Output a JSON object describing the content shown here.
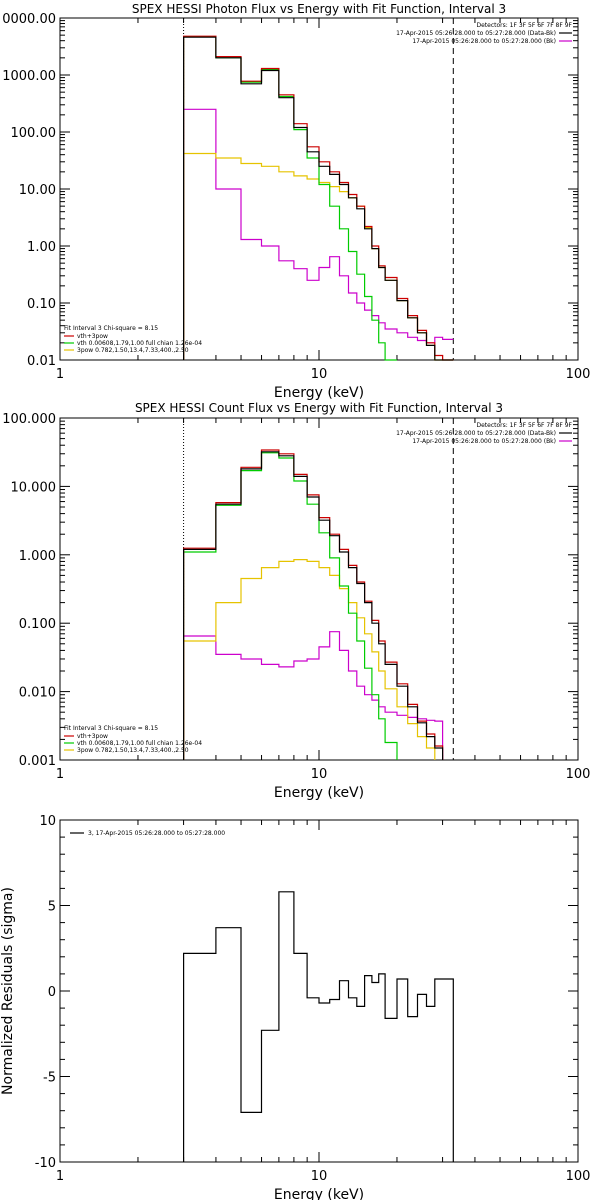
{
  "chart_data": [
    {
      "type": "line",
      "title": "SPEX HESSI Photon Flux vs Energy with Fit Function, Interval 3",
      "xlabel": "Energy (keV)",
      "ylabel": "",
      "xscale": "log",
      "yscale": "log",
      "xlim": [
        1,
        100
      ],
      "ylim": [
        0.01,
        10000
      ],
      "y_tick_labels": [
        "0000.00",
        "1000.00",
        "100.00",
        "10.00",
        "1.00",
        "0.10",
        "0.01"
      ],
      "x_tick_labels": [
        "1",
        "10",
        "100"
      ],
      "x_edges": [
        3,
        4,
        5,
        6,
        7,
        8,
        9,
        10,
        11,
        12,
        13,
        14,
        15,
        16,
        17,
        18,
        20,
        22,
        24,
        26,
        28,
        30,
        33
      ],
      "vlines": [
        3,
        33
      ],
      "top_legend": {
        "detectors": "Detectors: 1F 3F 5F 6F 7F 8F 9F",
        "entries": [
          {
            "text": "17-Apr-2015 05:26:28.000 to 05:27:28.000 (Data-Bk)",
            "color": "#000000"
          },
          {
            "text": "17-Apr-2015 05:26:28.000 to 05:27:28.000 (Bk)",
            "color": "#cc00cc"
          }
        ]
      },
      "fit_legend": {
        "header": "Fit Interval 3   Chi-square = 8.15",
        "entries": [
          {
            "text": "vth+3pow",
            "color": "#cc0000"
          },
          {
            "text": "vth 0.00608,1.79,1.00  full chian 1.26e-04",
            "color": "#00cc00"
          },
          {
            "text": "3pow 0.782,1.50,13.4,7.33,400.,2.50",
            "color": "#e6c300"
          }
        ]
      },
      "series": [
        {
          "name": "Data-Bk",
          "color": "#000000",
          "values": [
            4600,
            2000,
            700,
            1200,
            400,
            120,
            45,
            25,
            18,
            12,
            7.0,
            4.5,
            2.0,
            0.9,
            0.42,
            0.25,
            0.11,
            0.055,
            0.03,
            0.018,
            0.01,
            0.007
          ]
        },
        {
          "name": "vth+3pow",
          "color": "#cc0000",
          "values": [
            4800,
            2100,
            780,
            1300,
            450,
            140,
            55,
            30,
            20,
            13,
            8.0,
            5.0,
            2.2,
            1.0,
            0.45,
            0.28,
            0.12,
            0.06,
            0.033,
            0.02,
            0.012,
            0.008
          ]
        },
        {
          "name": "vth",
          "color": "#00cc00",
          "values": [
            4700,
            2000,
            750,
            1250,
            420,
            110,
            35,
            12,
            5.0,
            2.0,
            0.8,
            0.32,
            0.13,
            0.05,
            0.02,
            0.01
          ]
        },
        {
          "name": "3pow",
          "color": "#e6c300",
          "values": [
            42,
            35,
            28,
            25,
            20,
            17,
            15,
            13,
            11,
            9.0,
            7.0,
            5.0,
            2.1,
            0.9,
            0.42,
            0.25,
            0.11,
            0.055,
            0.03,
            0.018,
            0.01,
            0.007
          ]
        },
        {
          "name": "Bk",
          "color": "#cc00cc",
          "values": [
            250,
            10,
            1.3,
            1.0,
            0.55,
            0.4,
            0.25,
            0.42,
            0.65,
            0.3,
            0.15,
            0.1,
            0.075,
            0.06,
            0.045,
            0.035,
            0.03,
            0.025,
            0.022,
            0.02,
            0.025,
            0.023
          ]
        }
      ]
    },
    {
      "type": "line",
      "title": "SPEX HESSI Count Flux vs Energy with Fit Function, Interval 3",
      "xlabel": "Energy (keV)",
      "ylabel": "",
      "xscale": "log",
      "yscale": "log",
      "xlim": [
        1,
        100
      ],
      "ylim": [
        0.001,
        100
      ],
      "y_tick_labels": [
        "100.000",
        "10.000",
        "1.000",
        "0.100",
        "0.010",
        "0.001"
      ],
      "x_tick_labels": [
        "1",
        "10",
        "100"
      ],
      "x_edges": [
        3,
        4,
        5,
        6,
        7,
        8,
        9,
        10,
        11,
        12,
        13,
        14,
        15,
        16,
        17,
        18,
        20,
        22,
        24,
        26,
        28,
        30,
        33
      ],
      "vlines": [
        3,
        33
      ],
      "top_legend": {
        "detectors": "Detectors: 1F 3F 5F 6F 7F 8F 9F",
        "entries": [
          {
            "text": "17-Apr-2015 05:26:28.000 to 05:27:28.000 (Data-Bk)",
            "color": "#000000"
          },
          {
            "text": "17-Apr-2015 05:26:28.000 to 05:27:28.000 (Bk)",
            "color": "#cc00cc"
          }
        ]
      },
      "fit_legend": {
        "header": "Fit Interval 3   Chi-square = 8.15",
        "entries": [
          {
            "text": "vth+3pow",
            "color": "#cc0000"
          },
          {
            "text": "vth 0.00608,1.79,1.00  full chian 1.26e-04",
            "color": "#00cc00"
          },
          {
            "text": "3pow 0.782,1.50,13.4,7.33,400.,2.50",
            "color": "#e6c300"
          }
        ]
      },
      "series": [
        {
          "name": "Data-Bk",
          "color": "#000000",
          "values": [
            1.2,
            5.5,
            18,
            32,
            28,
            14,
            7.0,
            3.2,
            1.9,
            1.1,
            0.65,
            0.38,
            0.2,
            0.1,
            0.05,
            0.025,
            0.012,
            0.006,
            0.0035,
            0.0022,
            0.0015
          ]
        },
        {
          "name": "vth+3pow",
          "color": "#cc0000",
          "values": [
            1.25,
            5.8,
            19,
            34,
            30,
            15,
            7.5,
            3.5,
            2.0,
            1.2,
            0.7,
            0.4,
            0.21,
            0.11,
            0.055,
            0.027,
            0.013,
            0.0065,
            0.0037,
            0.0024,
            0.0016
          ]
        },
        {
          "name": "vth",
          "color": "#00cc00",
          "values": [
            1.1,
            5.3,
            17,
            31,
            26,
            12,
            5.5,
            2.1,
            0.9,
            0.35,
            0.14,
            0.055,
            0.022,
            0.009,
            0.004,
            0.0018
          ]
        },
        {
          "name": "3pow",
          "color": "#e6c300",
          "values": [
            0.055,
            0.2,
            0.45,
            0.65,
            0.8,
            0.85,
            0.8,
            0.65,
            0.5,
            0.32,
            0.2,
            0.12,
            0.07,
            0.038,
            0.02,
            0.011,
            0.006,
            0.0034,
            0.0022,
            0.0015
          ]
        },
        {
          "name": "Bk",
          "color": "#cc00cc",
          "values": [
            0.065,
            0.035,
            0.03,
            0.025,
            0.023,
            0.028,
            0.03,
            0.045,
            0.075,
            0.04,
            0.02,
            0.012,
            0.009,
            0.0075,
            0.006,
            0.005,
            0.0045,
            0.0042,
            0.004,
            0.0038,
            0.0037
          ]
        }
      ]
    },
    {
      "type": "line",
      "title": "",
      "xlabel": "Energy (keV)",
      "ylabel": "Normalized Residuals (sigma)",
      "xscale": "log",
      "yscale": "linear",
      "xlim": [
        1,
        100
      ],
      "ylim": [
        -10,
        10
      ],
      "y_ticks": [
        -10,
        -5,
        0,
        5,
        10
      ],
      "x_tick_labels": [
        "1",
        "10",
        "100"
      ],
      "x_edges": [
        3,
        4,
        5,
        6,
        7,
        8,
        9,
        10,
        11,
        12,
        13,
        14,
        15,
        16,
        17,
        18,
        20,
        22,
        24,
        26,
        28,
        30,
        33
      ],
      "legend": {
        "text": "3, 17-Apr-2015 05:26:28.000 to 05:27:28.000",
        "color": "#000000"
      },
      "series": [
        {
          "name": "3, 17-Apr-2015 05:26:28.000 to 05:27:28.000",
          "color": "#000000",
          "values": [
            2.2,
            3.7,
            -7.1,
            -2.3,
            5.8,
            2.2,
            -0.4,
            -0.7,
            -0.5,
            0.6,
            -0.4,
            -0.9,
            0.9,
            0.5,
            1.0,
            -1.6,
            0.7,
            -1.5,
            -0.2,
            -0.9,
            0.7,
            0.7
          ]
        }
      ]
    }
  ]
}
